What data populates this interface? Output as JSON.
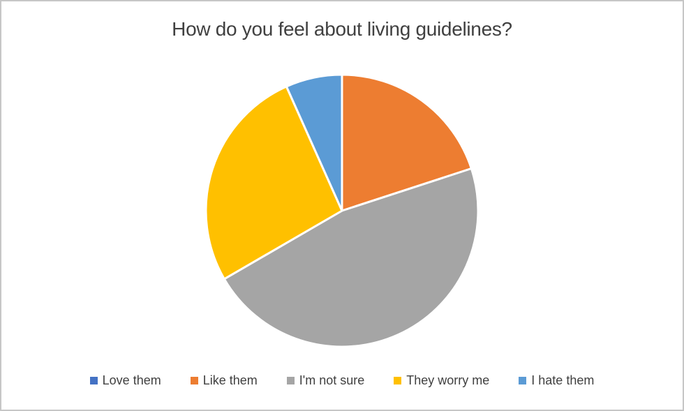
{
  "chart_data": {
    "type": "pie",
    "title": "How do you feel about living guidelines?",
    "categories": [
      "Love them",
      "Like them",
      "I'm not sure",
      "They worry me",
      "I hate them"
    ],
    "values": [
      0,
      20,
      46.7,
      26.7,
      6.7
    ],
    "unit": "percent",
    "colors": [
      "#4472C4",
      "#ED7D31",
      "#A5A5A5",
      "#FFC000",
      "#5B9BD5"
    ],
    "start_angle_deg": 0,
    "direction": "clockwise",
    "legend_position": "bottom",
    "slice_border_color": "#FFFFFF",
    "slice_border_width": 3,
    "title_color": "#404040",
    "legend_text_color": "#404040",
    "frame_color": "#C6C6C6",
    "background_color": "#FFFFFF"
  }
}
